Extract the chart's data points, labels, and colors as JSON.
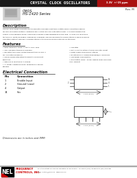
{
  "bg_color": "#ffffff",
  "header_bg": "#1a1a1a",
  "header_text": "CRYSTAL CLOCK OSCILLATORS",
  "header_text_color": "#ffffff",
  "header_red_bg": "#aa1111",
  "rev_text": "Rev. M",
  "series_line1": "CMOS",
  "series_line2": "HS-1420 Series",
  "desc_title": "Description",
  "desc_lines": [
    "The HS-1420 Series of quartz crystal oscillators provide selectable 3-state CMOS compatible signals",
    "for free connected systems. Supplying Pin 1 of the HS-1420 units with a logic '1' or open enables the",
    "output. In the disabled mode, output pin presents a high impedance to the load. All units are resistance",
    "tested in all metal packages, offering RFI shielding, and are designed to survive standard wave soldering",
    "operations without damage. Included standoffs to enhance board cleaning are standard."
  ],
  "feat_title": "Features",
  "features_left": [
    "Wide frequency range: 0.195 to 100+ MHz",
    "User specified tolerance available",
    "Will withstand vapor phase temperatures of 250°C",
    "   for 4 minutes maximum",
    "Space saving alternative to discrete component",
    "   oscillators",
    "High shock resistance, to 5000g",
    "All metal, resistance weld, hermetically sealed",
    "   package"
  ],
  "features_right": [
    "Low Jitter",
    "RGA-3 Crystal actively tuned oscillator circuit",
    "Power supply-decoupling internal",
    "No internal PLL avoids depending/PLL problems",
    "Low power consumption",
    "Gold plated leads - Solder dipped leads available",
    "   upon request"
  ],
  "elec_title": "Electrical Connection",
  "pin_col1": "Pin",
  "pin_col2": "Connection",
  "pins": [
    [
      "1",
      "Enable Input"
    ],
    [
      "2",
      "Ground (case)"
    ],
    [
      "4",
      "Output"
    ],
    [
      "14",
      "Vcc"
    ]
  ],
  "dim_text": "Dimensions are in inches and (MM)",
  "footer_logo_text": "NEL",
  "footer_company_line1": "FREQUENCY",
  "footer_company_line2": "CONTROLS, INC.",
  "footer_address": "417 Steele Street, P.O. Box 447, Burlington, WI 53104-0447    For Orders: (262) 763-3591 FAX: (262) 763-2881",
  "footer_email": "Email: controls@nelfc.com   www.nelfc.com"
}
